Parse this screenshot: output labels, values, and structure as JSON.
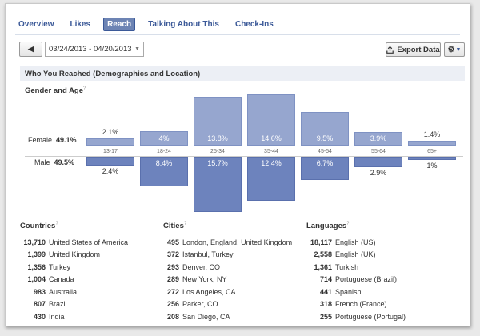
{
  "tabs": [
    "Overview",
    "Likes",
    "Reach",
    "Talking About This",
    "Check-Ins"
  ],
  "active_tab": "Reach",
  "date_range": {
    "prev_label": "◀",
    "value": "03/24/2013 - 04/20/2013"
  },
  "toolbar": {
    "export_label": "Export Data",
    "gear_label": "⚙"
  },
  "section_title": "Who You Reached (Demographics and Location)",
  "gender_age": {
    "title": "Gender and Age",
    "help_mark": "?",
    "female_label": "Female",
    "female_pct": "49.1%",
    "male_label": "Male",
    "male_pct": "49.5%",
    "age_groups": [
      "13-17",
      "18-24",
      "25-34",
      "35-44",
      "45-54",
      "55-64",
      "65+"
    ],
    "female_values": [
      2.1,
      4,
      13.8,
      14.6,
      9.5,
      3.9,
      1.4
    ],
    "female_labels": [
      "2.1%",
      "4%",
      "13.8%",
      "14.6%",
      "9.5%",
      "3.9%",
      "1.4%"
    ],
    "male_values": [
      2.4,
      8.4,
      15.7,
      12.4,
      6.7,
      2.9,
      1
    ],
    "male_labels": [
      "2.4%",
      "8.4%",
      "15.7%",
      "12.4%",
      "6.7%",
      "2.9%",
      "1%"
    ],
    "colors": {
      "female": "#96a6cf",
      "male": "#6d83bd",
      "tab_active": "#6d84b4",
      "link": "#3b5998"
    }
  },
  "countries": {
    "title": "Countries",
    "help_mark": "?",
    "items": [
      {
        "count": "13,710",
        "name": "United States of America"
      },
      {
        "count": "1,399",
        "name": "United Kingdom"
      },
      {
        "count": "1,356",
        "name": "Turkey"
      },
      {
        "count": "1,004",
        "name": "Canada"
      },
      {
        "count": "983",
        "name": "Australia"
      },
      {
        "count": "807",
        "name": "Brazil"
      },
      {
        "count": "430",
        "name": "India"
      }
    ]
  },
  "cities": {
    "title": "Cities",
    "help_mark": "?",
    "items": [
      {
        "count": "495",
        "name": "London, England, United Kingdom"
      },
      {
        "count": "372",
        "name": "Istanbul, Turkey"
      },
      {
        "count": "293",
        "name": "Denver, CO"
      },
      {
        "count": "289",
        "name": "New York, NY"
      },
      {
        "count": "272",
        "name": "Los Angeles, CA"
      },
      {
        "count": "256",
        "name": "Parker, CO"
      },
      {
        "count": "208",
        "name": "San Diego, CA"
      }
    ]
  },
  "languages": {
    "title": "Languages",
    "help_mark": "?",
    "items": [
      {
        "count": "18,117",
        "name": "English (US)"
      },
      {
        "count": "2,558",
        "name": "English (UK)"
      },
      {
        "count": "1,361",
        "name": "Turkish"
      },
      {
        "count": "714",
        "name": "Portuguese (Brazil)"
      },
      {
        "count": "441",
        "name": "Spanish"
      },
      {
        "count": "318",
        "name": "French (France)"
      },
      {
        "count": "255",
        "name": "Portuguese (Portugal)"
      }
    ]
  }
}
